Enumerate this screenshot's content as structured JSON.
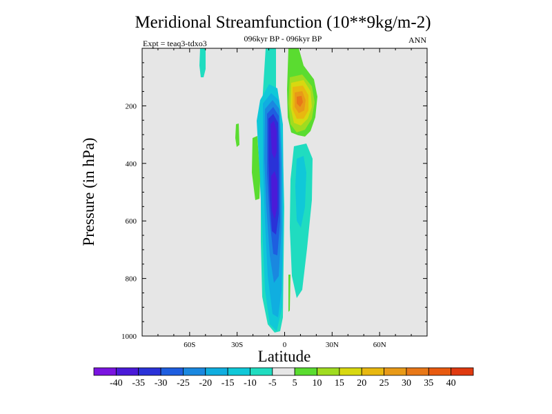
{
  "chart_data": {
    "type": "contour",
    "title": "Meridional Streamfunction (10**9kg/m-2)",
    "subtitle": "096kyr BP - 096kyr BP",
    "left_annotation": "Expt = teaq3-tdxo3",
    "right_annotation": "ANN",
    "xlabel": "Latitude",
    "ylabel": "Pressure (in hPa)",
    "xlim": [
      -90,
      90
    ],
    "ylim": [
      1000,
      0
    ],
    "x_ticks": [
      {
        "value": -60,
        "label": "60S"
      },
      {
        "value": -30,
        "label": "30S"
      },
      {
        "value": 0,
        "label": "0"
      },
      {
        "value": 30,
        "label": "30N"
      },
      {
        "value": 60,
        "label": "60N"
      }
    ],
    "y_ticks": [
      {
        "value": 200,
        "label": "200"
      },
      {
        "value": 400,
        "label": "400"
      },
      {
        "value": 600,
        "label": "600"
      },
      {
        "value": 800,
        "label": "800"
      },
      {
        "value": 1000,
        "label": "1000"
      }
    ],
    "background_color": "#e6e6e6",
    "colorbar": {
      "boundaries": [
        -40,
        -35,
        -30,
        -25,
        -20,
        -15,
        -10,
        -5,
        5,
        10,
        15,
        20,
        25,
        30,
        35,
        40
      ],
      "labels": [
        "-40",
        "-35",
        "-30",
        "-25",
        "-20",
        "-15",
        "-10",
        "-5",
        "5",
        "10",
        "15",
        "20",
        "25",
        "30",
        "35",
        "40"
      ],
      "colors": [
        "#7a14e0",
        "#4a1ad8",
        "#2a32d8",
        "#1e5ee0",
        "#1a88e0",
        "#10aee0",
        "#10c8d8",
        "#20dcc0",
        "#e6e6e6",
        "#5adc30",
        "#a0dc20",
        "#d8d810",
        "#e8b810",
        "#e89a18",
        "#e87818",
        "#e85a10",
        "#e03a10"
      ]
    },
    "features": [
      {
        "kind": "negative_cell",
        "name": "southern cell",
        "lat_range": [
          -14,
          2
        ],
        "pressure_range": [
          90,
          980
        ],
        "min_value": -35,
        "min_location": {
          "lat": -3,
          "pressure": 450
        }
      },
      {
        "kind": "positive_cell",
        "name": "northern upper cell",
        "lat_range": [
          4,
          20
        ],
        "pressure_range": [
          50,
          300
        ],
        "max_value": 30,
        "max_location": {
          "lat": 10,
          "pressure": 190
        }
      },
      {
        "kind": "negative_cell",
        "name": "northern lower cell",
        "lat_range": [
          5,
          14
        ],
        "pressure_range": [
          320,
          930
        ],
        "min_value": -10
      },
      {
        "kind": "positive_cell",
        "name": "southern side lobe",
        "lat_range": [
          -20,
          -15
        ],
        "pressure_range": [
          290,
          540
        ],
        "max_value": 5
      },
      {
        "kind": "negative_cell",
        "name": "upper small cell",
        "lat_range": [
          -52,
          -49
        ],
        "pressure_range": [
          0,
          110
        ],
        "min_value": -5
      },
      {
        "kind": "positive_cell",
        "name": "small cell",
        "lat_range": [
          -31,
          -28
        ],
        "pressure_range": [
          270,
          380
        ],
        "max_value": 5
      }
    ]
  }
}
